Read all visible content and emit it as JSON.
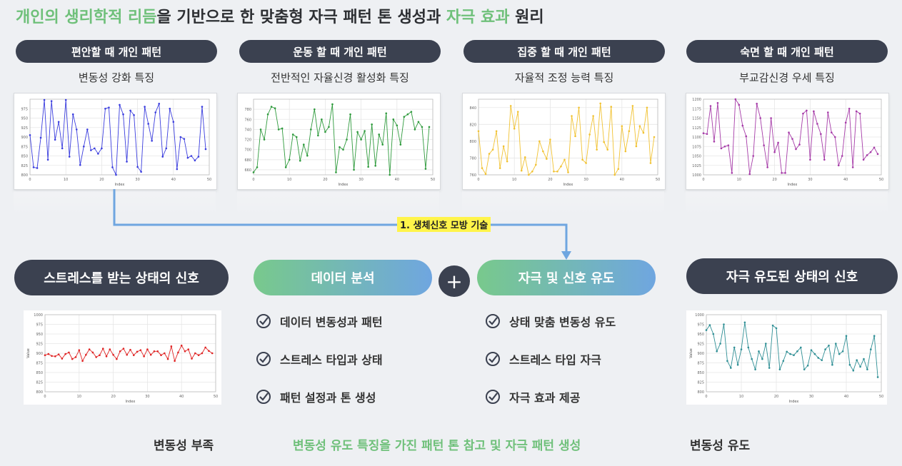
{
  "title": {
    "part1": "개인의 생리학적 리듬",
    "part2": "을 기반으로 한 맞춤형 자극 패턴 톤 생성과 ",
    "part3": "자극 효과",
    "part4": " 원리"
  },
  "top_panels": [
    {
      "label": "편안할 때 개인 패턴",
      "sub": "변동성 강화 특징",
      "color": "#3a3dde"
    },
    {
      "label": "운동 할 때 개인 패턴",
      "sub": "전반적인 자율신경 활성화 특징",
      "color": "#2e9a3c"
    },
    {
      "label": "집중 할 때 개인 패턴",
      "sub": "자율적 조정 능력 특징",
      "color": "#f1c232"
    },
    {
      "label": "숙면 할 때 개인 패턴",
      "sub": "부교감신경 우세 특징",
      "color": "#a63ba8"
    }
  ],
  "arrow_tag": "1. 생체신호 모방 기술",
  "left_panel": {
    "label": "스트레스를 받는 상태의 신호",
    "bottom": "변동성 부족"
  },
  "right_panel": {
    "label": "자극 유도된 상태의 신호",
    "bottom": "변동성 유도"
  },
  "center": {
    "left_title": "데이터 분석",
    "right_title": "자극 및 신호 유도",
    "plus": "+",
    "left_items": [
      "데이터 변동성과 패턴",
      "스트레스 타입과 상태",
      "패턴 설정과 톤 생성"
    ],
    "right_items": [
      "상태 맞춤 변동성 유도",
      "스트레스 타입 자극",
      "자극 효과 제공"
    ],
    "bottom": "변동성 유도 특징을 가진 패턴 톤 참고 및 자극 패턴 생성"
  },
  "chart_data": [
    {
      "type": "line",
      "color": "#3a3dde",
      "xlabel": "Index",
      "ylim": [
        800,
        1000
      ],
      "xticks": [
        0,
        10,
        20,
        30,
        40,
        50
      ],
      "yticks": [
        800,
        825,
        850,
        875,
        900,
        925,
        950,
        975
      ],
      "values": [
        905,
        820,
        818,
        898,
        998,
        840,
        995,
        893,
        940,
        870,
        998,
        848,
        960,
        920,
        826,
        875,
        920,
        865,
        870,
        856,
        870,
        975,
        978,
        820,
        800,
        985,
        960,
        835,
        970,
        958,
        821,
        808,
        980,
        935,
        890,
        965,
        988,
        848,
        870,
        975,
        940,
        815,
        900,
        895,
        845,
        850,
        838,
        848,
        980,
        868
      ]
    },
    {
      "type": "line",
      "color": "#2e9a3c",
      "xlabel": "Index",
      "ylim": [
        650,
        800
      ],
      "xticks": [
        0,
        10,
        20,
        30,
        40,
        50
      ],
      "yticks": [
        660,
        680,
        700,
        720,
        740,
        760,
        780
      ],
      "values": [
        655,
        665,
        740,
        720,
        770,
        785,
        782,
        740,
        742,
        665,
        680,
        730,
        725,
        678,
        710,
        688,
        740,
        780,
        728,
        760,
        735,
        745,
        790,
        655,
        705,
        700,
        720,
        770,
        660,
        735,
        720,
        737,
        666,
        750,
        668,
        730,
        710,
        772,
        650,
        760,
        748,
        710,
        765,
        770,
        775,
        740,
        755,
        745,
        662,
        745
      ]
    },
    {
      "type": "line",
      "color": "#f1c232",
      "xlabel": "Index",
      "ylim": [
        760,
        850
      ],
      "xticks": [
        0,
        10,
        20,
        30,
        40,
        50
      ],
      "yticks": [
        760,
        780,
        800,
        820,
        840
      ],
      "values": [
        812,
        768,
        761,
        785,
        790,
        812,
        768,
        794,
        776,
        842,
        815,
        835,
        765,
        781,
        760,
        764,
        772,
        800,
        788,
        779,
        802,
        764,
        764,
        770,
        778,
        763,
        830,
        806,
        840,
        778,
        774,
        808,
        830,
        790,
        845,
        799,
        790,
        841,
        760,
        767,
        818,
        788,
        812,
        842,
        794,
        818,
        810,
        840,
        774,
        805
      ]
    },
    {
      "type": "line",
      "color": "#a63ba8",
      "xlabel": "Index",
      "ylim": [
        1000,
        1200
      ],
      "xticks": [
        0,
        10,
        20,
        30,
        40,
        50
      ],
      "yticks": [
        1000,
        1025,
        1050,
        1075,
        1100,
        1125,
        1150,
        1175,
        1200
      ],
      "values": [
        1110,
        1108,
        1182,
        1088,
        1190,
        1070,
        1075,
        1078,
        1005,
        1200,
        1185,
        1130,
        1102,
        1002,
        1050,
        1188,
        1150,
        1078,
        1020,
        1150,
        1060,
        1085,
        1005,
        1005,
        1112,
        1095,
        1068,
        1080,
        1162,
        1170,
        1040,
        1168,
        1135,
        1108,
        1040,
        1165,
        1112,
        1100,
        1025,
        1050,
        1138,
        1175,
        1020,
        1168,
        1162,
        1040,
        1052,
        1060,
        1072,
        1055
      ]
    },
    {
      "type": "line",
      "color": "#e02424",
      "xlabel": "Index",
      "ylabel": "Value",
      "ylim": [
        800,
        1000
      ],
      "xticks": [
        0,
        10,
        20,
        30,
        40,
        50
      ],
      "yticks": [
        800,
        825,
        850,
        875,
        900,
        925,
        950,
        975,
        1000
      ],
      "values": [
        895,
        898,
        893,
        892,
        897,
        886,
        898,
        902,
        885,
        890,
        908,
        880,
        896,
        910,
        902,
        890,
        895,
        912,
        892,
        910,
        896,
        885,
        905,
        912,
        896,
        909,
        895,
        904,
        908,
        892,
        910,
        896,
        905,
        905,
        895,
        900,
        885,
        918,
        880,
        902,
        920,
        905,
        910,
        886,
        900,
        895,
        900,
        915,
        906,
        900
      ]
    },
    {
      "type": "line",
      "color": "#2f8f95",
      "xlabel": "Index",
      "ylabel": "Value",
      "ylim": [
        800,
        1000
      ],
      "xticks": [
        0,
        10,
        20,
        30,
        40,
        50
      ],
      "yticks": [
        800,
        825,
        850,
        875,
        900,
        925,
        950,
        975,
        1000
      ],
      "values": [
        960,
        973,
        950,
        905,
        925,
        975,
        880,
        862,
        915,
        870,
        910,
        980,
        915,
        885,
        858,
        905,
        885,
        925,
        862,
        972,
        965,
        858,
        880,
        904,
        898,
        895,
        905,
        915,
        858,
        868,
        908,
        898,
        888,
        882,
        910,
        920,
        870,
        925,
        898,
        905,
        945,
        870,
        855,
        882,
        865,
        885,
        858,
        910,
        945,
        838
      ]
    }
  ]
}
